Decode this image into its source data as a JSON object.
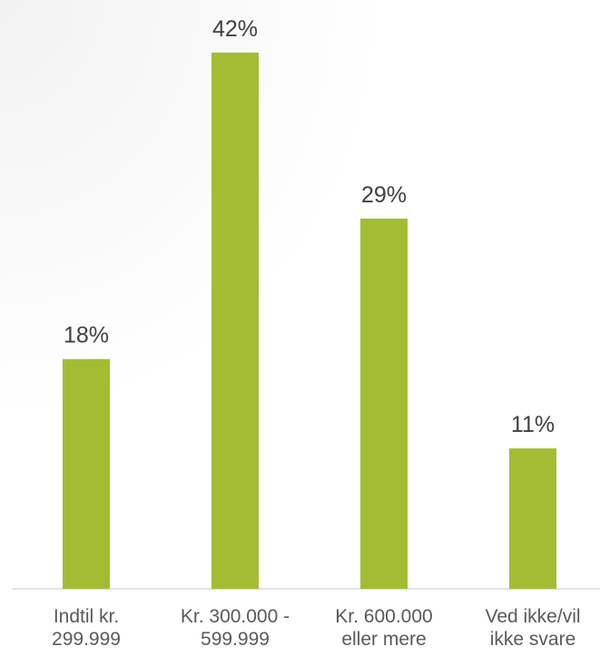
{
  "chart_data": {
    "type": "bar",
    "categories": [
      [
        "Indtil kr.",
        "299.999"
      ],
      [
        "Kr. 300.000 -",
        "599.999"
      ],
      [
        "Kr. 600.000",
        "eller mere"
      ],
      [
        "Ved ikke/vil",
        "ikke svare"
      ]
    ],
    "values": [
      18,
      42,
      29,
      11
    ],
    "data_labels": [
      "18%",
      "42%",
      "29%",
      "11%"
    ],
    "unit": "%",
    "title": "",
    "xlabel": "",
    "ylabel": "",
    "ylim": [
      0,
      42
    ],
    "grid": false,
    "legend": "none",
    "colors": {
      "bar": "#a2bd33",
      "axis": "#d9d9d9",
      "value_text": "#404040",
      "category_text": "#595959"
    }
  }
}
